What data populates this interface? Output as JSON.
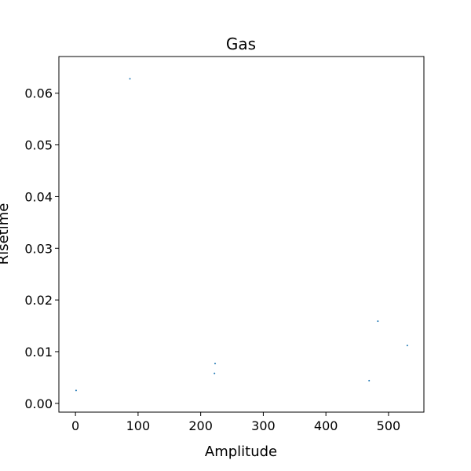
{
  "chart_data": {
    "type": "scatter",
    "title": "Gas",
    "xlabel": "Amplitude",
    "ylabel": "Risetime",
    "xlim": [
      -26.5,
      556.5
    ],
    "ylim": [
      -0.0017,
      0.0671
    ],
    "x_ticks": [
      0,
      100,
      200,
      300,
      400,
      500
    ],
    "y_ticks": [
      0.0,
      0.01,
      0.02,
      0.03,
      0.04,
      0.05,
      0.06
    ],
    "x_tick_labels": [
      "0",
      "100",
      "200",
      "300",
      "400",
      "500"
    ],
    "y_tick_labels": [
      "0.00",
      "0.01",
      "0.02",
      "0.03",
      "0.04",
      "0.05",
      "0.06"
    ],
    "grid": false,
    "marker_color": "#1f77b4",
    "series": [
      {
        "points": [
          {
            "x": 1,
            "y": 0.0025
          },
          {
            "x": 87,
            "y": 0.0628
          },
          {
            "x": 222,
            "y": 0.0058
          },
          {
            "x": 223,
            "y": 0.0077
          },
          {
            "x": 469,
            "y": 0.0044
          },
          {
            "x": 483,
            "y": 0.0159
          },
          {
            "x": 530,
            "y": 0.0112
          }
        ]
      }
    ]
  }
}
